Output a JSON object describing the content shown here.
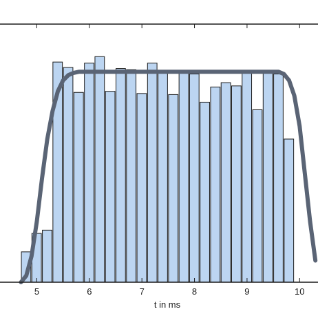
{
  "chart_data": {
    "type": "bar",
    "title": "",
    "xlabel": "t in ms",
    "ylabel": "",
    "xlim": [
      4.3,
      10.35
    ],
    "ylim": [
      0,
      1.19
    ],
    "bin_width": 0.2,
    "grid": false,
    "x_ticks": [
      5,
      6,
      7,
      8,
      9,
      10
    ],
    "x_tick_labels": [
      "5",
      "6",
      "7",
      "8",
      "9",
      "10"
    ],
    "series": [
      {
        "type": "bar",
        "bin_centers": [
          4.8,
          5.0,
          5.2,
          5.4,
          5.6,
          5.8,
          6.0,
          6.2,
          6.4,
          6.6,
          6.8,
          7.0,
          7.2,
          7.4,
          7.6,
          7.8,
          8.0,
          8.2,
          8.4,
          8.6,
          8.8,
          9.0,
          9.2,
          9.4,
          9.6,
          9.8,
          10.0,
          10.2
        ],
        "values": [
          0.14,
          0.225,
          0.24,
          1.015,
          0.99,
          0.875,
          1.01,
          1.04,
          0.88,
          0.985,
          0.98,
          0.87,
          1.01,
          0.97,
          0.865,
          0.975,
          0.96,
          0.83,
          0.9,
          0.92,
          0.905,
          0.965,
          0.795,
          0.97,
          0.96,
          0.66,
          0.0,
          0.0
        ],
        "color": "#bcd5f1",
        "edge_color": "#1a1a1a"
      },
      {
        "type": "line",
        "x": [
          4.7,
          4.8,
          4.9,
          5.0,
          5.1,
          5.2,
          5.3,
          5.4,
          5.5,
          5.6,
          5.7,
          5.8,
          5.9,
          6.0,
          7.0,
          8.0,
          9.0,
          9.6,
          9.7,
          9.8,
          9.9,
          10.0,
          10.1,
          10.2,
          10.3
        ],
        "y": [
          0.0,
          0.03,
          0.12,
          0.28,
          0.48,
          0.66,
          0.79,
          0.88,
          0.93,
          0.955,
          0.965,
          0.97,
          0.97,
          0.97,
          0.97,
          0.97,
          0.97,
          0.97,
          0.96,
          0.93,
          0.86,
          0.72,
          0.5,
          0.28,
          0.1
        ],
        "color": "#5a6475"
      }
    ]
  }
}
